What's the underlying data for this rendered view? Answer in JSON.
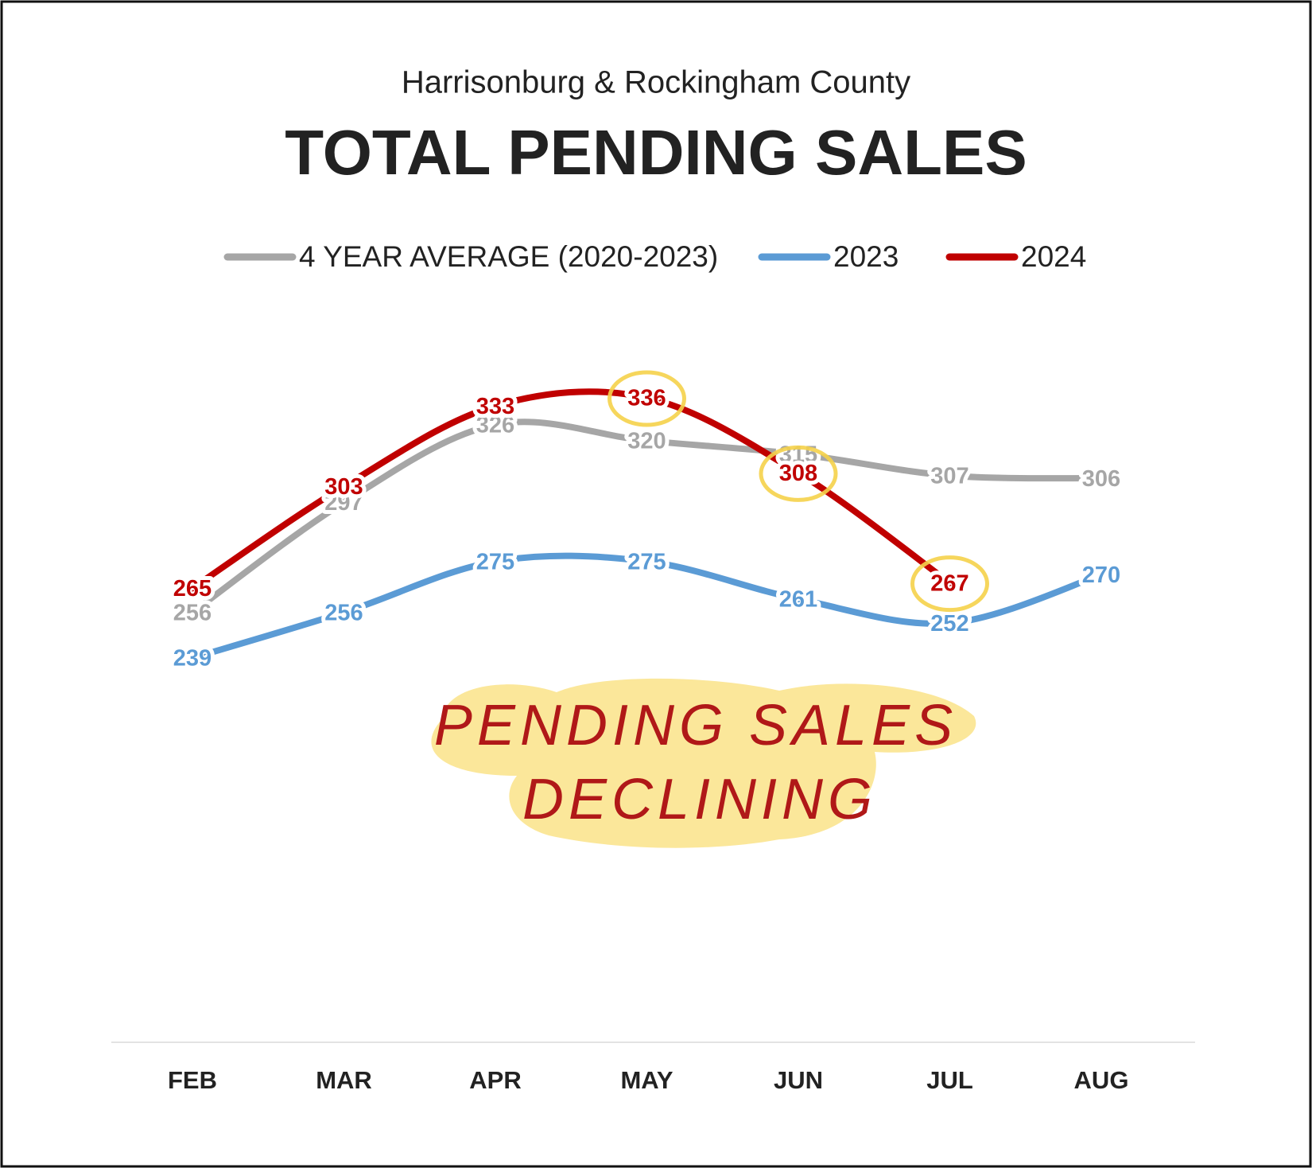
{
  "chart_data": {
    "type": "line",
    "subtitle": "Harrisonburg & Rockingham County",
    "title": "TOTAL PENDING SALES",
    "categories": [
      "FEB",
      "MAR",
      "APR",
      "MAY",
      "JUN",
      "JUL",
      "AUG"
    ],
    "series": [
      {
        "name": "4 YEAR AVERAGE (2020-2023)",
        "color": "#a6a6a6",
        "values": [
          256,
          297,
          326,
          320,
          315,
          307,
          306
        ]
      },
      {
        "name": "2023",
        "color": "#5b9bd5",
        "values": [
          239,
          256,
          275,
          275,
          261,
          252,
          270
        ]
      },
      {
        "name": "2024",
        "color": "#c00000",
        "values": [
          265,
          303,
          333,
          336,
          308,
          267,
          null
        ],
        "highlighted": [
          3,
          4,
          5
        ]
      }
    ],
    "annotation": [
      "PENDING SALES",
      "DECLINING"
    ],
    "legend": "top",
    "grid": false
  }
}
